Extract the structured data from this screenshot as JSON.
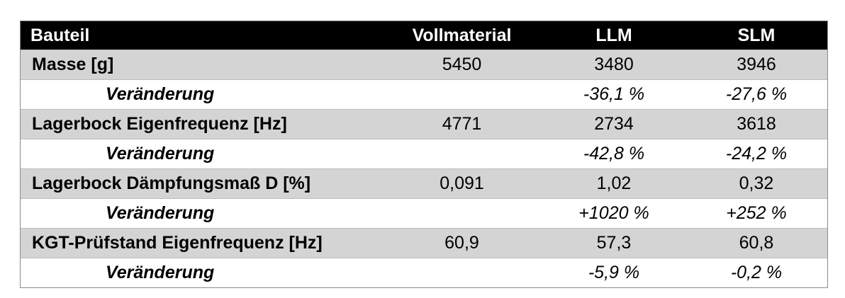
{
  "table": {
    "headers": [
      "Bauteil",
      "Vollmaterial",
      "LLM",
      "SLM"
    ],
    "rows": [
      {
        "type": "main",
        "cells": [
          "Masse [g]",
          "5450",
          "3480",
          "3946"
        ]
      },
      {
        "type": "change",
        "cells": [
          "Veränderung",
          "",
          "-36,1 %",
          "-27,6 %"
        ]
      },
      {
        "type": "main",
        "cells": [
          "Lagerbock Eigenfrequenz [Hz]",
          "4771",
          "2734",
          "3618"
        ]
      },
      {
        "type": "change",
        "cells": [
          "Veränderung",
          "",
          "-42,8 %",
          "-24,2 %"
        ]
      },
      {
        "type": "main",
        "cells": [
          "Lagerbock Dämpfungsmaß D [%]",
          "0,091",
          "1,02",
          "0,32"
        ]
      },
      {
        "type": "change",
        "cells": [
          "Veränderung",
          "",
          "+1020 %",
          "+252 %"
        ]
      },
      {
        "type": "main",
        "cells": [
          "KGT-Prüfstand Eigenfrequenz [Hz]",
          "60,9",
          "57,3",
          "60,8"
        ]
      },
      {
        "type": "change",
        "cells": [
          "Veränderung",
          "",
          "-5,9 %",
          "-0,2 %"
        ]
      }
    ]
  },
  "colors": {
    "header_bg": "#000000",
    "header_text": "#ffffff",
    "main_row_bg": "#d4d4d4",
    "change_row_bg": "#ffffff"
  }
}
